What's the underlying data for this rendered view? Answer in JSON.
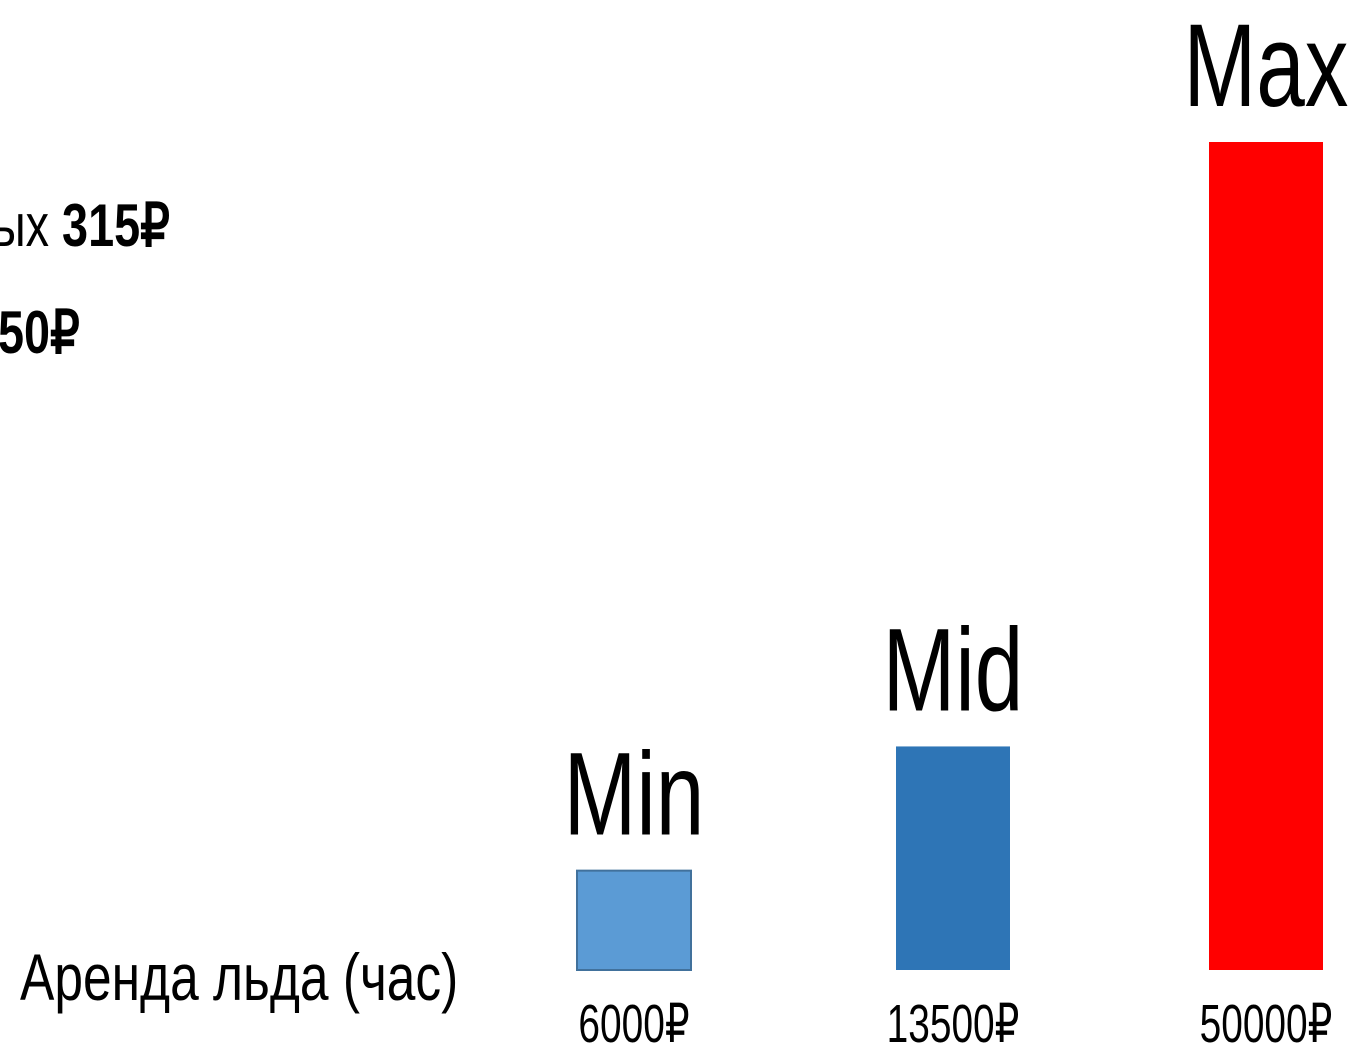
{
  "side_text": {
    "line1_prefix": "ых ",
    "line1_value": "315₽",
    "line2_value": "50₽"
  },
  "chart_data": {
    "type": "bar",
    "xlabel": "Аренда льда (час)",
    "categories": [
      "Min",
      "Mid",
      "Max"
    ],
    "values": [
      6000,
      13500,
      50000
    ],
    "value_labels": [
      "6000₽",
      "13500₽",
      "50000₽"
    ],
    "colors": [
      "#5b9bd5",
      "#2e75b6",
      "#ff0000"
    ],
    "ylim": [
      0,
      50000
    ],
    "grid": false,
    "legend": "none"
  }
}
